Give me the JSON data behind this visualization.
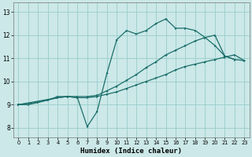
{
  "xlabel": "Humidex (Indice chaleur)",
  "bg_color": "#cce8e8",
  "grid_color": "#99cccc",
  "line_color": "#1a6e6a",
  "xlim": [
    -0.5,
    23.5
  ],
  "ylim": [
    7.6,
    13.4
  ],
  "xticks": [
    0,
    1,
    2,
    3,
    4,
    5,
    6,
    7,
    8,
    9,
    10,
    11,
    12,
    13,
    14,
    15,
    16,
    17,
    18,
    19,
    20,
    21,
    22,
    23
  ],
  "yticks": [
    8,
    9,
    10,
    11,
    12,
    13
  ],
  "line1_x": [
    0,
    1,
    2,
    3,
    4,
    5,
    6,
    7,
    8,
    9,
    10,
    11,
    12,
    13,
    14,
    15,
    16,
    17,
    18,
    19,
    20,
    21,
    22,
    23
  ],
  "line1_y": [
    9.0,
    9.0,
    9.1,
    9.2,
    9.35,
    9.35,
    9.3,
    8.05,
    8.7,
    10.35,
    11.8,
    12.2,
    12.05,
    12.2,
    12.5,
    12.7,
    12.3,
    12.3,
    12.2,
    11.9,
    11.55,
    11.1,
    10.95,
    null
  ],
  "line2_x": [
    0,
    2,
    3,
    4,
    5,
    6,
    7,
    8,
    9,
    10,
    11,
    12,
    13,
    14,
    15,
    16,
    17,
    18,
    19,
    20,
    21,
    22,
    23
  ],
  "line2_y": [
    9.0,
    9.1,
    9.2,
    9.3,
    9.35,
    9.3,
    9.3,
    9.35,
    9.45,
    9.55,
    9.7,
    9.85,
    10.0,
    10.15,
    10.3,
    10.5,
    10.65,
    10.75,
    10.85,
    10.95,
    11.05,
    11.15,
    10.9
  ],
  "line3_x": [
    0,
    4,
    5,
    6,
    7,
    8,
    9,
    10,
    11,
    12,
    13,
    14,
    15,
    16,
    17,
    18,
    19,
    20,
    21,
    22,
    23
  ],
  "line3_y": [
    9.0,
    9.3,
    9.35,
    9.35,
    9.35,
    9.4,
    9.6,
    9.8,
    10.05,
    10.3,
    10.6,
    10.85,
    11.15,
    11.35,
    11.55,
    11.75,
    11.9,
    12.0,
    11.1,
    10.95,
    10.9
  ]
}
